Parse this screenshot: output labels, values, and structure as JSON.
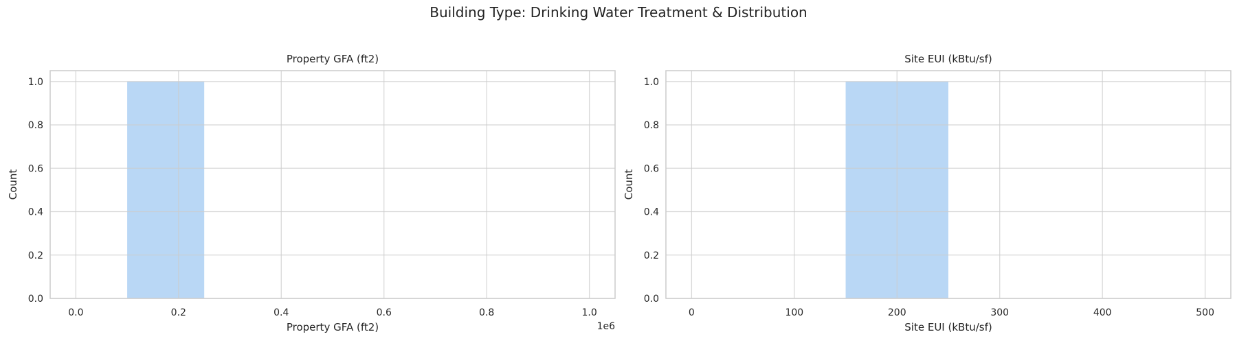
{
  "figure": {
    "title": "Building Type: Drinking Water Treatment & Distribution"
  },
  "chart_data": [
    {
      "type": "bar",
      "title": "Property GFA (ft2)",
      "xlabel": "Property GFA (ft2)",
      "ylabel": "Count",
      "x_offset_label": "1e6",
      "xlim": [
        -50000,
        1050000
      ],
      "ylim": [
        0,
        1.05
      ],
      "xticks": [
        0,
        200000,
        400000,
        600000,
        800000,
        1000000
      ],
      "xtick_labels": [
        "0.0",
        "0.2",
        "0.4",
        "0.6",
        "0.8",
        "1.0"
      ],
      "yticks": [
        0,
        0.2,
        0.4,
        0.6,
        0.8,
        1.0
      ],
      "ytick_labels": [
        "0.0",
        "0.2",
        "0.4",
        "0.6",
        "0.8",
        "1.0"
      ],
      "bins": [
        {
          "start": 100000,
          "end": 250000,
          "count": 1
        }
      ],
      "bar_color": "#b9d7f5",
      "grid": true,
      "legend": "none"
    },
    {
      "type": "bar",
      "title": "Site EUI (kBtu/sf)",
      "xlabel": "Site EUI (kBtu/sf)",
      "ylabel": "Count",
      "x_offset_label": "",
      "xlim": [
        -25,
        525
      ],
      "ylim": [
        0,
        1.05
      ],
      "xticks": [
        0,
        100,
        200,
        300,
        400,
        500
      ],
      "xtick_labels": [
        "0",
        "100",
        "200",
        "300",
        "400",
        "500"
      ],
      "yticks": [
        0,
        0.2,
        0.4,
        0.6,
        0.8,
        1.0
      ],
      "ytick_labels": [
        "0.0",
        "0.2",
        "0.4",
        "0.6",
        "0.8",
        "1.0"
      ],
      "bins": [
        {
          "start": 150,
          "end": 250,
          "count": 1
        }
      ],
      "bar_color": "#b9d7f5",
      "grid": true,
      "legend": "none"
    }
  ]
}
